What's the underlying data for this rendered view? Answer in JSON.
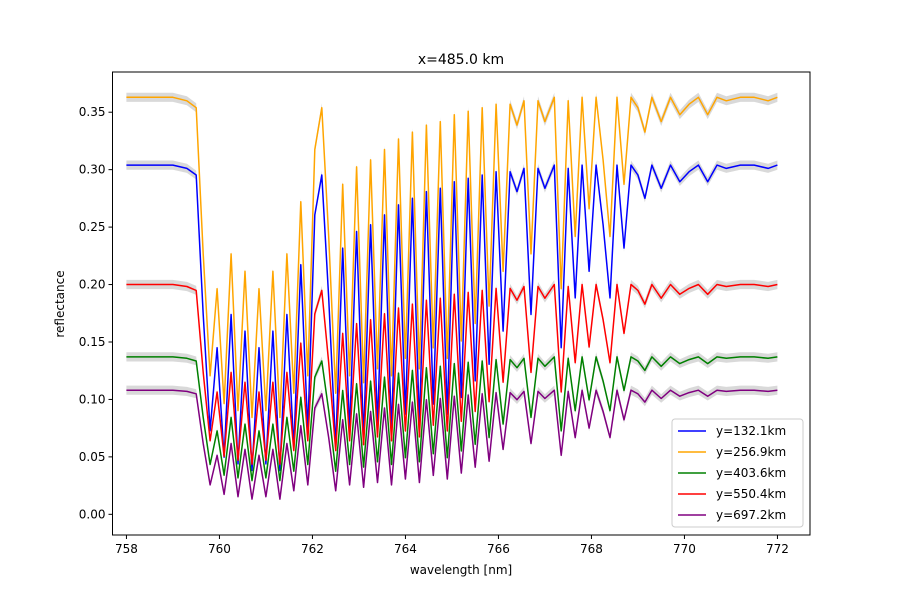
{
  "chart_data": {
    "type": "line",
    "title": "x=485.0 km",
    "xlabel": "wavelength [nm]",
    "ylabel": "reflectance",
    "xlim": [
      757.7,
      772.7
    ],
    "ylim": [
      -0.018,
      0.385
    ],
    "xticks": [
      758,
      760,
      762,
      764,
      766,
      768,
      770,
      772
    ],
    "yticks": [
      0.0,
      0.05,
      0.1,
      0.15,
      0.2,
      0.25,
      0.3,
      0.35
    ],
    "ytick_labels": [
      "0.00",
      "0.05",
      "0.10",
      "0.15",
      "0.20",
      "0.25",
      "0.30",
      "0.35"
    ],
    "grid": false,
    "legend_position": "lower right",
    "band_color": "#c0c0c0",
    "wavelength": [
      758.0,
      758.5,
      759.0,
      759.3,
      759.5,
      759.65,
      759.8,
      759.95,
      760.1,
      760.25,
      760.4,
      760.55,
      760.7,
      760.85,
      761.0,
      761.15,
      761.3,
      761.45,
      761.6,
      761.75,
      761.9,
      762.05,
      762.2,
      762.35,
      762.5,
      762.65,
      762.8,
      762.95,
      763.1,
      763.25,
      763.4,
      763.55,
      763.7,
      763.85,
      764.0,
      764.15,
      764.3,
      764.45,
      764.6,
      764.75,
      764.9,
      765.05,
      765.2,
      765.35,
      765.5,
      765.65,
      765.8,
      765.95,
      766.1,
      766.25,
      766.4,
      766.55,
      766.7,
      766.85,
      767.0,
      767.2,
      767.35,
      767.5,
      767.65,
      767.8,
      767.95,
      768.1,
      768.25,
      768.4,
      768.55,
      768.7,
      768.85,
      769.0,
      769.15,
      769.3,
      769.5,
      769.7,
      769.9,
      770.1,
      770.3,
      770.5,
      770.7,
      770.9,
      771.2,
      771.5,
      771.8,
      772.0
    ],
    "shape": [
      1.0,
      1.0,
      1.0,
      0.99,
      0.97,
      0.55,
      0.2,
      0.45,
      0.12,
      0.55,
      0.1,
      0.5,
      0.08,
      0.45,
      0.1,
      0.5,
      0.08,
      0.55,
      0.15,
      0.7,
      0.2,
      0.85,
      0.97,
      0.6,
      0.15,
      0.75,
      0.2,
      0.8,
      0.18,
      0.82,
      0.22,
      0.85,
      0.2,
      0.88,
      0.25,
      0.9,
      0.22,
      0.92,
      0.28,
      0.93,
      0.25,
      0.95,
      0.3,
      0.96,
      0.35,
      0.97,
      0.4,
      0.98,
      0.5,
      0.98,
      0.92,
      0.99,
      0.55,
      0.99,
      0.93,
      1.0,
      0.45,
      0.99,
      0.6,
      1.0,
      0.68,
      1.0,
      0.82,
      0.6,
      1.0,
      0.75,
      1.0,
      0.97,
      0.9,
      1.0,
      0.93,
      1.0,
      0.95,
      0.98,
      1.0,
      0.95,
      1.0,
      0.99,
      1.0,
      1.0,
      0.99,
      1.0
    ],
    "series": [
      {
        "name": "y=132.1km",
        "color": "#0000ff",
        "base": 0.304,
        "floor": 0.015
      },
      {
        "name": "y=256.9km",
        "color": "#ffa500",
        "base": 0.363,
        "floor": 0.06
      },
      {
        "name": "y=403.6km",
        "color": "#008000",
        "base": 0.137,
        "floor": 0.02
      },
      {
        "name": "y=550.4km",
        "color": "#ff0000",
        "base": 0.2,
        "floor": 0.03
      },
      {
        "name": "y=697.2km",
        "color": "#800080",
        "base": 0.108,
        "floor": 0.005
      }
    ]
  }
}
